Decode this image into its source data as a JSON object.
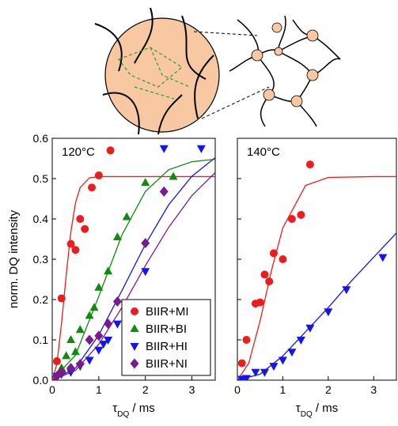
{
  "chart_data": [
    {
      "type": "scatter",
      "annotation": "120°C",
      "ylabel": "norm. DQ intensity",
      "xlabel": [
        "τ",
        "DQ",
        " / ms"
      ],
      "xlim": [
        0,
        3.5
      ],
      "ylim": [
        0,
        0.6
      ],
      "xticks": [
        0,
        1,
        2,
        3
      ],
      "yticks": [
        {
          "value": 0,
          "label": "0.0"
        },
        0.1,
        0.2,
        0.3,
        0.4,
        0.5,
        0.6
      ],
      "ytick_labels": true,
      "legend": "lower right",
      "series": [
        {
          "name": "BIIR+MI",
          "color": "#ee1c1c",
          "marker": "circle",
          "x": [
            0.1,
            0.2,
            0.4,
            0.5,
            0.6,
            0.7,
            0.85,
            1.0,
            1.25
          ],
          "values": [
            0.047,
            0.203,
            0.338,
            0.323,
            0.4,
            0.375,
            0.478,
            0.508,
            0.57
          ]
        },
        {
          "name": "BIIR+BI",
          "color": "#108a10",
          "marker": "triangle-up",
          "x": [
            0.2,
            0.3,
            0.4,
            0.5,
            0.6,
            0.8,
            0.9,
            1.0,
            1.2,
            1.4,
            1.6,
            2.0,
            2.6
          ],
          "values": [
            0.03,
            0.06,
            0.1,
            0.07,
            0.125,
            0.16,
            0.18,
            0.23,
            0.27,
            0.355,
            0.405,
            0.49,
            0.505
          ]
        },
        {
          "name": "BIIR+HI",
          "color": "#1414ee",
          "marker": "triangle-down",
          "x": [
            0.1,
            0.2,
            0.4,
            0.6,
            0.8,
            1.0,
            1.1,
            1.2,
            1.4,
            1.6,
            2.0,
            2.4,
            3.2
          ],
          "values": [
            0.01,
            0.015,
            0.02,
            0.035,
            0.05,
            0.075,
            0.09,
            0.1,
            0.14,
            0.17,
            0.27,
            0.575,
            0.575
          ]
        },
        {
          "name": "BIIR+NI",
          "color": "#7a1a8c",
          "marker": "diamond",
          "x": [
            0.1,
            0.2,
            0.4,
            0.6,
            0.8,
            1.0,
            1.2,
            1.4,
            2.0,
            2.4
          ],
          "values": [
            0.01,
            0.02,
            0.03,
            0.04,
            0.1,
            0.11,
            0.14,
            0.195,
            0.34,
            0.468
          ]
        }
      ],
      "fits": [
        {
          "color": "#ee1c1c",
          "x": [
            0,
            0.1,
            0.2,
            0.3,
            0.4,
            0.5,
            0.6,
            0.8,
            1.0,
            1.5,
            2.0,
            2.5,
            3.0,
            3.5
          ],
          "values": [
            0,
            0.04,
            0.141,
            0.26,
            0.368,
            0.44,
            0.478,
            0.502,
            0.505,
            0.505,
            0.505,
            0.505,
            0.505,
            0.505
          ]
        },
        {
          "color": "#108a10",
          "x": [
            0,
            0.5,
            1.0,
            1.5,
            2.0,
            2.5,
            3.0,
            3.5
          ],
          "values": [
            0,
            0.062,
            0.208,
            0.361,
            0.468,
            0.522,
            0.542,
            0.548
          ]
        },
        {
          "color": "#1414ee",
          "x": [
            0,
            0.5,
            1.0,
            1.5,
            2.0,
            2.5,
            3.0,
            3.5
          ],
          "values": [
            0,
            0.03,
            0.112,
            0.223,
            0.337,
            0.435,
            0.506,
            0.552
          ]
        },
        {
          "color": "#7a1a8c",
          "x": [
            0,
            0.5,
            1.0,
            1.5,
            2.0,
            2.5,
            3.0,
            3.5
          ],
          "values": [
            0,
            0.024,
            0.089,
            0.181,
            0.284,
            0.379,
            0.458,
            0.515
          ]
        }
      ]
    },
    {
      "type": "scatter",
      "annotation": "140°C",
      "xlabel": [
        "τ",
        "DQ",
        " / ms"
      ],
      "xlim": [
        0,
        3.5
      ],
      "ylim": [
        0,
        0.6
      ],
      "xticks": [
        0,
        1,
        2,
        3
      ],
      "yticks": [
        0,
        0.1,
        0.2,
        0.3,
        0.4,
        0.5,
        0.6
      ],
      "ytick_labels": false,
      "series": [
        {
          "color": "#ee1c1c",
          "marker": "circle",
          "x": [
            0.1,
            0.2,
            0.4,
            0.5,
            0.6,
            0.7,
            0.8,
            1.0,
            1.2,
            1.4,
            1.6
          ],
          "values": [
            0.042,
            0.1,
            0.19,
            0.193,
            0.262,
            0.245,
            0.315,
            0.3,
            0.4,
            0.41,
            0.535
          ]
        },
        {
          "color": "#1414ee",
          "marker": "triangle-down",
          "x": [
            0.1,
            0.2,
            0.4,
            0.6,
            0.8,
            1.0,
            1.2,
            1.4,
            1.6,
            2.0,
            2.4,
            3.2
          ],
          "values": [
            0.003,
            0.005,
            0.02,
            0.02,
            0.035,
            0.05,
            0.07,
            0.1,
            0.13,
            0.17,
            0.225,
            0.305
          ]
        }
      ],
      "fits": [
        {
          "color": "#ee1c1c",
          "x": [
            0,
            0.25,
            0.5,
            0.75,
            1.0,
            1.5,
            2.0,
            3.0,
            3.5
          ],
          "values": [
            0,
            0.042,
            0.147,
            0.272,
            0.378,
            0.483,
            0.503,
            0.505,
            0.505
          ]
        },
        {
          "color": "#1414ee",
          "x": [
            0,
            0.5,
            1.0,
            1.5,
            2.0,
            2.5,
            3.0,
            3.5
          ],
          "values": [
            0,
            0.015,
            0.06,
            0.12,
            0.18,
            0.245,
            0.305,
            0.365
          ]
        }
      ]
    }
  ]
}
